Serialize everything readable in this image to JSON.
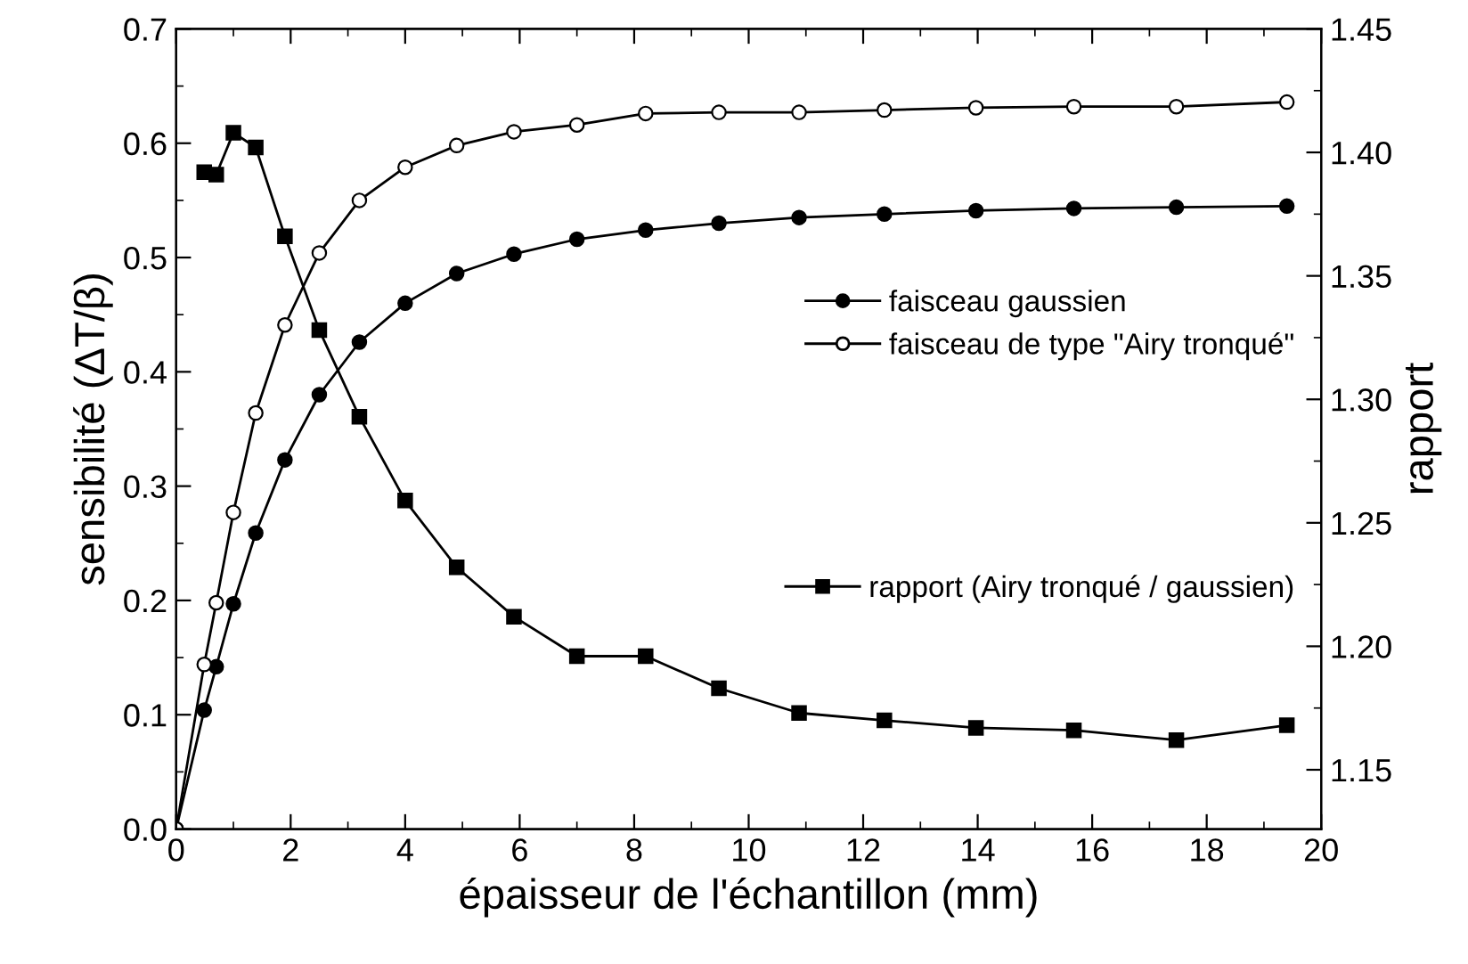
{
  "chart_data": {
    "type": "line",
    "xlabel": "épaisseur de l'échantillon (mm)",
    "ylabel": "sensibilité (ΔT/β)",
    "y2label": "rapport",
    "xlim": [
      0,
      20
    ],
    "xticks": [
      0,
      2,
      4,
      6,
      8,
      10,
      12,
      14,
      16,
      18,
      20
    ],
    "ylim": [
      0.0,
      0.7
    ],
    "yticks": [
      {
        "value": 0.0,
        "label": "0.0"
      },
      0.1,
      0.2,
      0.3,
      0.4,
      0.5,
      0.6,
      0.7
    ],
    "y2lim": [
      1.126,
      1.45
    ],
    "y2ticks": [
      1.15,
      {
        "value": 1.2,
        "label": "1.20"
      },
      1.25,
      {
        "value": 1.3,
        "label": "1.30"
      },
      1.35,
      {
        "value": 1.4,
        "label": "1.40"
      },
      1.45
    ],
    "grid": false,
    "legend": "right",
    "line_style": "solid",
    "series": [
      {
        "name": "faisceau gaussien",
        "color": "#000000",
        "marker": "circle",
        "x": [
          0,
          0.49,
          0.7,
          1.0,
          1.39,
          1.9,
          2.5,
          3.2,
          4.0,
          4.9,
          5.9,
          7.0,
          8.2,
          9.48,
          10.88,
          12.37,
          13.97,
          15.68,
          17.47,
          19.4
        ],
        "values": [
          0.0,
          0.104,
          0.142,
          0.197,
          0.259,
          0.323,
          0.38,
          0.426,
          0.46,
          0.486,
          0.503,
          0.516,
          0.524,
          0.53,
          0.535,
          0.538,
          0.541,
          0.543,
          0.544,
          0.545
        ]
      },
      {
        "name": "faisceau de type \"Airy tronqué\"",
        "color": "#000000",
        "marker": "circle",
        "x": [
          0,
          0.49,
          0.7,
          1.0,
          1.39,
          1.9,
          2.5,
          3.2,
          4.0,
          4.9,
          5.9,
          7.0,
          8.2,
          9.48,
          10.88,
          12.37,
          13.97,
          15.68,
          17.47,
          19.4
        ],
        "values": [
          0.0,
          0.144,
          0.198,
          0.277,
          0.364,
          0.441,
          0.504,
          0.55,
          0.579,
          0.598,
          0.61,
          0.616,
          0.626,
          0.627,
          0.627,
          0.629,
          0.631,
          0.632,
          0.632,
          0.636
        ]
      },
      {
        "name": "rapport (Airy tronqué / gaussien)",
        "color": "#000000",
        "marker": "square",
        "axis": "y2",
        "x": [
          0.49,
          0.7,
          1.0,
          1.39,
          1.9,
          2.5,
          3.2,
          4.0,
          4.9,
          5.9,
          7.0,
          8.2,
          9.48,
          10.88,
          12.37,
          13.97,
          15.68,
          17.47,
          19.4
        ],
        "values": [
          1.392,
          1.391,
          1.408,
          1.402,
          1.366,
          1.328,
          1.293,
          1.259,
          1.232,
          1.212,
          1.196,
          1.196,
          1.183,
          1.173,
          1.17,
          1.167,
          1.166,
          1.162,
          1.168
        ]
      }
    ]
  }
}
